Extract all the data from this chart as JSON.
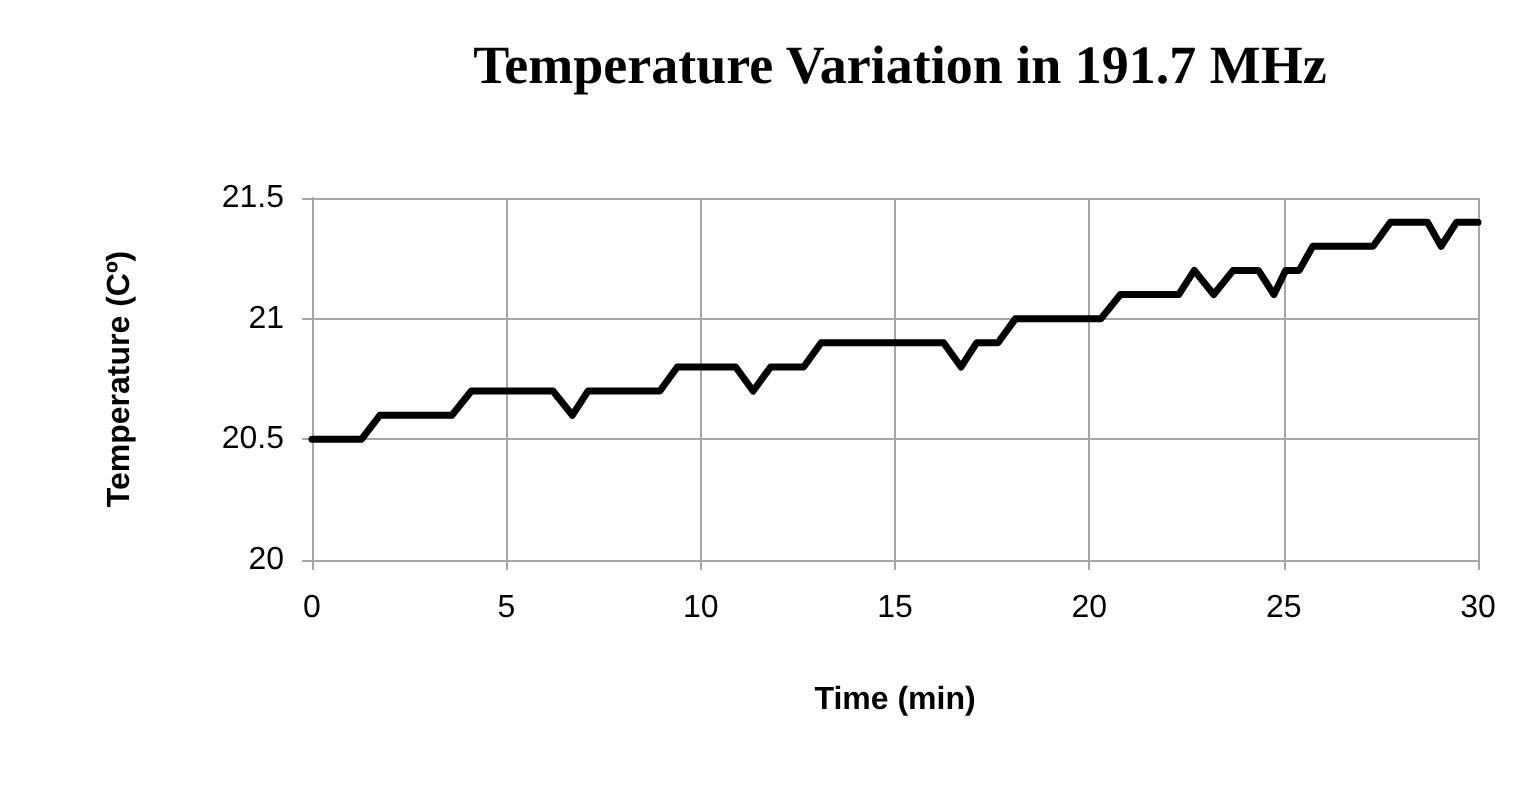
{
  "chart_data": {
    "type": "line",
    "title": "Temperature Variation in 191.7 MHz",
    "xlabel": "Time (min)",
    "ylabel": "Temperature (Cº)",
    "series": [
      {
        "color": "#000000",
        "x": [
          0,
          1.27,
          1.75,
          3.6,
          4.1,
          6.2,
          6.7,
          7.1,
          8.95,
          9.4,
          10.9,
          11.35,
          11.8,
          12.65,
          13.1,
          16.25,
          16.7,
          17.1,
          17.65,
          18.1,
          20.3,
          20.8,
          22.3,
          22.7,
          23.2,
          23.7,
          24.35,
          24.75,
          25.05,
          25.4,
          25.75,
          27.3,
          27.75,
          28.7,
          29.05,
          29.45,
          30
        ],
        "values": [
          20.5,
          20.5,
          20.6,
          20.6,
          20.7,
          20.7,
          20.6,
          20.7,
          20.7,
          20.8,
          20.8,
          20.7,
          20.8,
          20.8,
          20.9,
          20.9,
          20.8,
          20.9,
          20.9,
          21.0,
          21.0,
          21.1,
          21.1,
          21.2,
          21.1,
          21.2,
          21.2,
          21.1,
          21.2,
          21.2,
          21.3,
          21.3,
          21.4,
          21.4,
          21.3,
          21.4,
          21.4
        ]
      }
    ],
    "xlim": [
      0,
      30
    ],
    "xticks": [
      0,
      5,
      10,
      15,
      20,
      25,
      30
    ],
    "ylim": [
      20,
      21.5
    ],
    "yticks": [
      20,
      20.5,
      21,
      21.5
    ],
    "grid": true,
    "marker": "none",
    "line_style": "solid"
  }
}
